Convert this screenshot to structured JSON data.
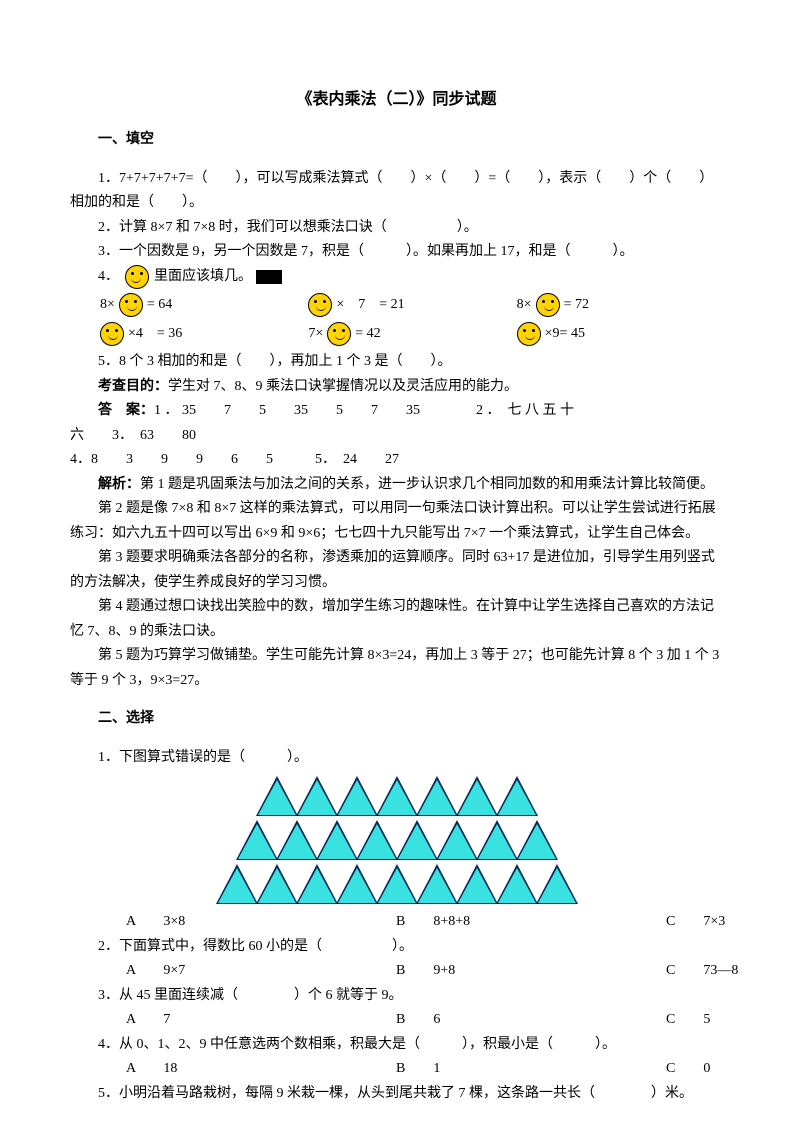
{
  "title": "《表内乘法（二）》同步试题",
  "s1": {
    "heading": "一、填空",
    "q1": "1．7+7+7+7+7=（　　），可以写成乘法算式（　　）×（　　）=（　　），表示（　　）个（　　）相加的和是（　　）。",
    "q2": "2．计算 8×7 和 7×8 时，我们可以想乘法口诀（　　　　　）。",
    "q3": "3．一个因数是 9，另一个因数是 7，积是（　　　）。如果再加上 17，和是（　　　）。",
    "q4": "4．",
    "q4_tail": "里面应该填几。",
    "eq": {
      "r1": [
        "8×",
        "= 64",
        "×　7　= 21",
        "8×",
        "= 72"
      ],
      "r2": [
        "×4　= 36",
        "7×",
        "= 42",
        "×9= 45"
      ]
    },
    "q5": "5．8 个 3 相加的和是（　　），再加上 1 个 3 是（　　）。",
    "aim_lbl": "考查目的：",
    "aim": "学生对 7、8、9 乘法口诀掌握情况以及灵活应用的能力。",
    "ans_lbl": "答　案：",
    "ans1": "1 ． 35　　7　　5　　35　　5　　7　　35　　　　2 ．　七 八 五 十",
    "ans1b": "六　　3．　63　　80",
    "ans2": "4．8　　3　　9　　9　　6　　5　　　5．　24　　27",
    "exp_lbl": "解析：",
    "exp1": "第 1 题是巩固乘法与加法之间的关系，进一步认识求几个相同加数的和用乘法计算比较简便。",
    "exp2": "第 2 题是像 7×8 和 8×7 这样的乘法算式，可以用同一句乘法口诀计算出积。可以让学生尝试进行拓展练习：如六九五十四可以写出 6×9 和 9×6；七七四十九只能写出 7×7 一个乘法算式，让学生自己体会。",
    "exp3": "第 3 题要求明确乘法各部分的名称，渗透乘加的运算顺序。同时 63+17 是进位加，引导学生用列竖式的方法解决，使学生养成良好的学习习惯。",
    "exp4": "第 4 题通过想口诀找出笑脸中的数，增加学生练习的趣味性。在计算中让学生选择自己喜欢的方法记忆 7、8、9 的乘法口诀。",
    "exp5": "第 5 题为巧算学习做铺垫。学生可能先计算 8×3=24，再加上 3 等于 27；也可能先计算 8 个 3 加 1 个 3 等于 9 个 3，9×3=27。"
  },
  "s2": {
    "heading": "二、选择",
    "q1": "1．下图算式错误的是（　　　）。",
    "rows": [
      7,
      8,
      9
    ],
    "tri_fill": "#3ae1e1",
    "tri_border": "#002a55",
    "q1o": {
      "a": "A　　3×8",
      "b": "B　　8+8+8",
      "c": "C　　7×3"
    },
    "q2": "2．下面算式中，得数比 60 小的是（　　　　　）。",
    "q2o": {
      "a": "A　　9×7",
      "b": "B　　9+8",
      "c": "C　　73—8"
    },
    "q3": "3．从 45 里面连续减（　　　　）个 6 就等于 9。",
    "q3o": {
      "a": "A　　7",
      "b": "B　　6",
      "c": "C　　5"
    },
    "q4": "4．从 0、1、2、9 中任意选两个数相乘，积最大是（　　　），积最小是（　　　）。",
    "q4o": {
      "a": "A　　18",
      "b": "B　　1",
      "c": "C　　0"
    },
    "q5": "5．小明沿着马路栽树，每隔 9 米栽一棵，从头到尾共栽了 7 棵，这条路一共长（　　　　）米。"
  }
}
